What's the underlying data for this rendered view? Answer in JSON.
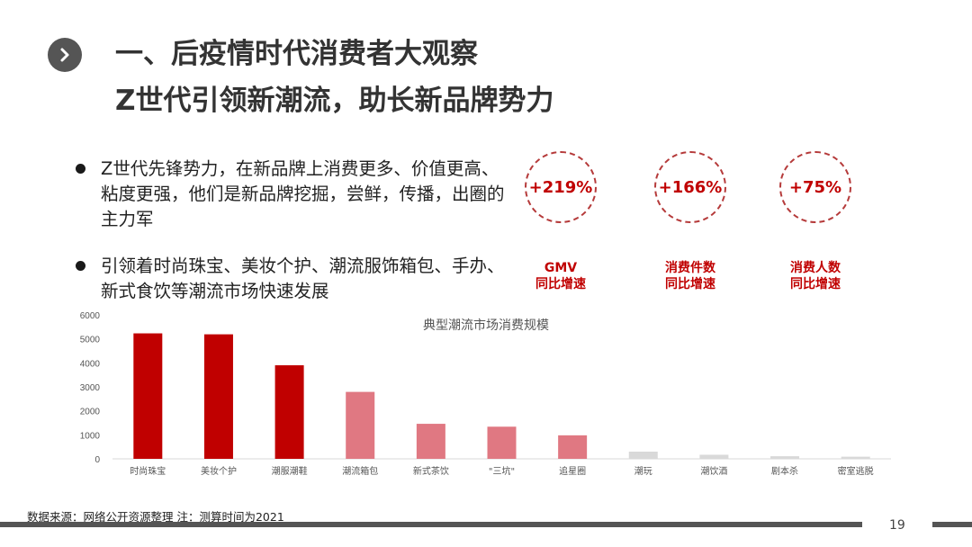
{
  "header": {
    "title_line1": "一、后疫情时代消费者大观察",
    "title_line2": "Z世代引领新潮流，助长新品牌势力"
  },
  "bullets": [
    "Z世代先锋势力，在新品牌上消费更多、价值更高、粘度更强，他们是新品牌挖掘，尝鲜，传播，出圈的主力军",
    "引领着时尚珠宝、美妆个护、潮流服饰箱包、手办、新式食饮等潮流市场快速发展"
  ],
  "stats": [
    {
      "value": "+219%",
      "label": "GMV\n同比增速"
    },
    {
      "value": "+166%",
      "label": "消费件数\n同比增速"
    },
    {
      "value": "+75%",
      "label": "消费人数\n同比增速"
    }
  ],
  "chart_data": {
    "type": "bar",
    "title": "典型潮流市场消费规模",
    "categories": [
      "时尚珠宝",
      "美妆个护",
      "潮服潮鞋",
      "潮流箱包",
      "新式茶饮",
      "\"三坑\"",
      "追星圈",
      "潮玩",
      "潮饮酒",
      "剧本杀",
      "密室逃脱"
    ],
    "values": [
      5230,
      5190,
      3900,
      2790,
      1460,
      1340,
      980,
      300,
      170,
      110,
      90
    ],
    "ylim": [
      0,
      6000
    ],
    "yticks": [
      0,
      1000,
      2000,
      3000,
      4000,
      5000,
      6000
    ],
    "colors": [
      "#c00000",
      "#c00000",
      "#c00000",
      "#e07882",
      "#e07882",
      "#e07882",
      "#e07882",
      "#d9d9d9",
      "#d9d9d9",
      "#d9d9d9",
      "#d9d9d9"
    ],
    "grid": false,
    "legend": "none"
  },
  "footnote": "数据来源：网络公开资源整理 注：测算时间为2021",
  "page_number": "19",
  "colors": {
    "accent_red": "#c00000",
    "mid_red": "#e07882",
    "gray_bar": "#d9d9d9",
    "dark_gray": "#555555"
  }
}
